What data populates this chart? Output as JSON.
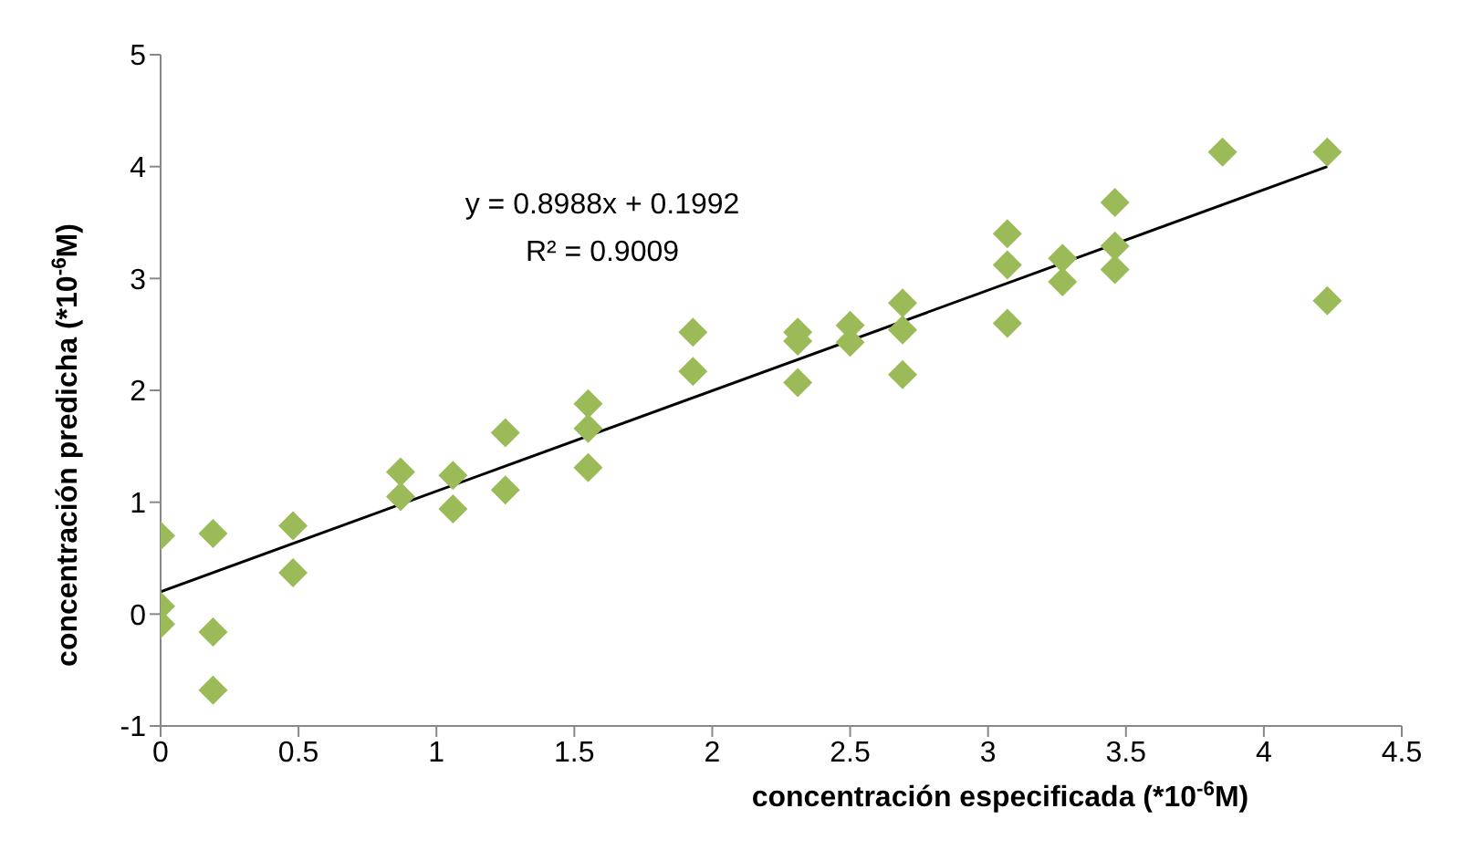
{
  "chart_data": {
    "type": "scatter",
    "xlabel": "concentración especificada (*10$^{-6}$M)",
    "ylabel": "concentración predicha (*10$^{-6}$M)",
    "xlim": [
      0,
      4.5
    ],
    "xticks": [
      0,
      0.5,
      1,
      1.5,
      2,
      2.5,
      3,
      3.5,
      4,
      4.5
    ],
    "ylim": [
      -1,
      5
    ],
    "yticks": [
      -1,
      0,
      1,
      2,
      3,
      4,
      5
    ],
    "grid": false,
    "legend": false,
    "marker": "diamond",
    "annotations": [
      "y = 0.8988x + 0.1992",
      "R² = 0.9009"
    ],
    "series": [
      {
        "type": "scatter",
        "color": "#9bbb59",
        "x": [
          0,
          0,
          0,
          0.19,
          0.19,
          0.19,
          0.48,
          0.48,
          0.87,
          0.87,
          1.06,
          1.06,
          1.25,
          1.25,
          1.55,
          1.55,
          1.55,
          1.93,
          1.93,
          2.31,
          2.31,
          2.31,
          2.5,
          2.5,
          2.69,
          2.69,
          2.69,
          3.07,
          3.07,
          3.07,
          3.27,
          3.27,
          3.46,
          3.46,
          3.46,
          3.85,
          4.23,
          4.23
        ],
        "values": [
          0.7,
          0.07,
          -0.09,
          0.72,
          -0.16,
          -0.68,
          0.79,
          0.37,
          1.27,
          1.05,
          1.24,
          0.94,
          1.62,
          1.11,
          1.88,
          1.66,
          1.31,
          2.52,
          2.17,
          2.52,
          2.44,
          2.07,
          2.58,
          2.43,
          2.78,
          2.54,
          2.14,
          3.4,
          3.12,
          2.6,
          3.18,
          2.97,
          3.68,
          3.29,
          3.08,
          4.13,
          4.13,
          2.8
        ]
      },
      {
        "type": "line",
        "color": "#000000",
        "x": [
          0,
          4.23
        ],
        "values": [
          0.2,
          4.0
        ],
        "marker": "none",
        "line_style": "solid"
      }
    ]
  }
}
